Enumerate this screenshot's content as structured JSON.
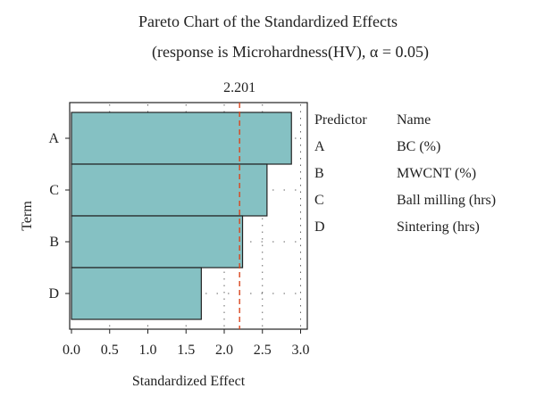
{
  "chart_data": {
    "type": "bar",
    "orientation": "horizontal",
    "title": "Pareto Chart of the Standardized Effects",
    "subtitle": "(response is Microhardness(HV), α = 0.05)",
    "xlabel": "Standardized Effect",
    "ylabel": "Term",
    "categories": [
      "A",
      "C",
      "B",
      "D"
    ],
    "values": [
      2.88,
      2.56,
      2.24,
      1.7
    ],
    "xlim": [
      0.0,
      3.05
    ],
    "xticks": [
      0.0,
      0.5,
      1.0,
      1.5,
      2.0,
      2.5,
      3.0
    ],
    "xtick_labels": [
      "0.0",
      "0.5",
      "1.0",
      "1.5",
      "2.0",
      "2.5",
      "3.0"
    ],
    "reference_line": {
      "value": 2.201,
      "label": "2.201",
      "color": "#d9461e"
    },
    "bar_color": "#85c1c3",
    "bar_edge_color": "#222222",
    "grid": "dotted",
    "legend": {
      "placement": "right",
      "headers": [
        "Predictor",
        "Name"
      ],
      "rows": [
        {
          "predictor": "A",
          "name": "BC (%)"
        },
        {
          "predictor": "B",
          "name": "MWCNT (%)"
        },
        {
          "predictor": "C",
          "name": "Ball milling (hrs)"
        },
        {
          "predictor": "D",
          "name": "Sintering (hrs)"
        }
      ]
    }
  }
}
